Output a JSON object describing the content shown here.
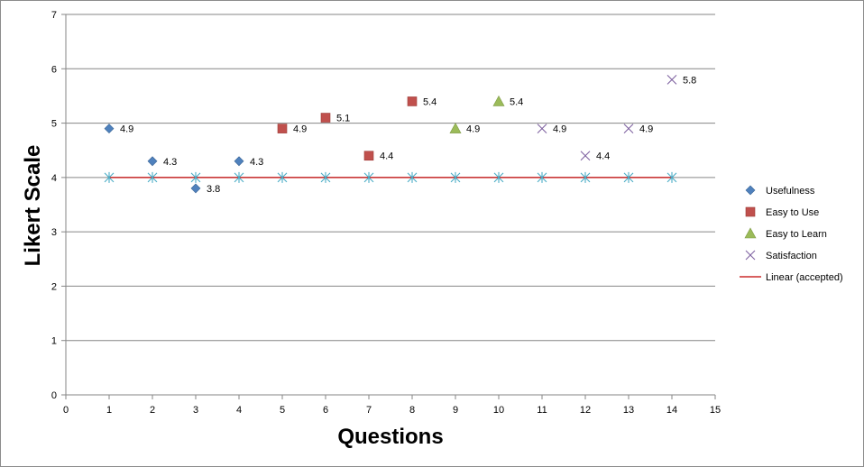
{
  "chart_data": {
    "type": "scatter",
    "title": "",
    "xlabel": "Questions",
    "ylabel": "Likert Scale",
    "xlim": [
      0,
      15
    ],
    "ylim": [
      0,
      7
    ],
    "x_ticks": [
      0,
      1,
      2,
      3,
      4,
      5,
      6,
      7,
      8,
      9,
      10,
      11,
      12,
      13,
      14,
      15
    ],
    "y_ticks": [
      0,
      1,
      2,
      3,
      4,
      5,
      6,
      7
    ],
    "grid": "horizontal",
    "legend_position": "right",
    "series": [
      {
        "name": "Usefulness",
        "marker": "diamond",
        "color": "#4F81BD",
        "points": [
          {
            "x": 1,
            "y": 4.9,
            "label": "4.9"
          },
          {
            "x": 2,
            "y": 4.3,
            "label": "4.3"
          },
          {
            "x": 3,
            "y": 3.8,
            "label": "3.8"
          },
          {
            "x": 4,
            "y": 4.3,
            "label": "4.3"
          }
        ]
      },
      {
        "name": "Easy to Use",
        "marker": "square",
        "color": "#C0504D",
        "points": [
          {
            "x": 5,
            "y": 4.9,
            "label": "4.9"
          },
          {
            "x": 6,
            "y": 5.1,
            "label": "5.1"
          },
          {
            "x": 7,
            "y": 4.4,
            "label": "4.4"
          },
          {
            "x": 8,
            "y": 5.4,
            "label": "5.4"
          }
        ]
      },
      {
        "name": "Easy to Learn",
        "marker": "triangle",
        "color": "#9BBB59",
        "points": [
          {
            "x": 9,
            "y": 4.9,
            "label": "4.9"
          },
          {
            "x": 10,
            "y": 5.4,
            "label": "5.4"
          }
        ]
      },
      {
        "name": "Satisfaction",
        "marker": "x",
        "color": "#8064A2",
        "points": [
          {
            "x": 11,
            "y": 4.9,
            "label": "4.9"
          },
          {
            "x": 12,
            "y": 4.4,
            "label": "4.4"
          },
          {
            "x": 13,
            "y": 4.9,
            "label": "4.9"
          },
          {
            "x": 14,
            "y": 5.8,
            "label": "5.8"
          }
        ]
      }
    ],
    "accepted_points": {
      "marker": "asterisk",
      "color": "#4BACC6",
      "x": [
        1,
        2,
        3,
        4,
        5,
        6,
        7,
        8,
        9,
        10,
        11,
        12,
        13,
        14
      ],
      "y": [
        4,
        4,
        4,
        4,
        4,
        4,
        4,
        4,
        4,
        4,
        4,
        4,
        4,
        4
      ]
    },
    "trendline": {
      "name": "Linear (accepted)",
      "color": "#C00000",
      "x": [
        1,
        14
      ],
      "y": [
        4,
        4
      ]
    }
  }
}
